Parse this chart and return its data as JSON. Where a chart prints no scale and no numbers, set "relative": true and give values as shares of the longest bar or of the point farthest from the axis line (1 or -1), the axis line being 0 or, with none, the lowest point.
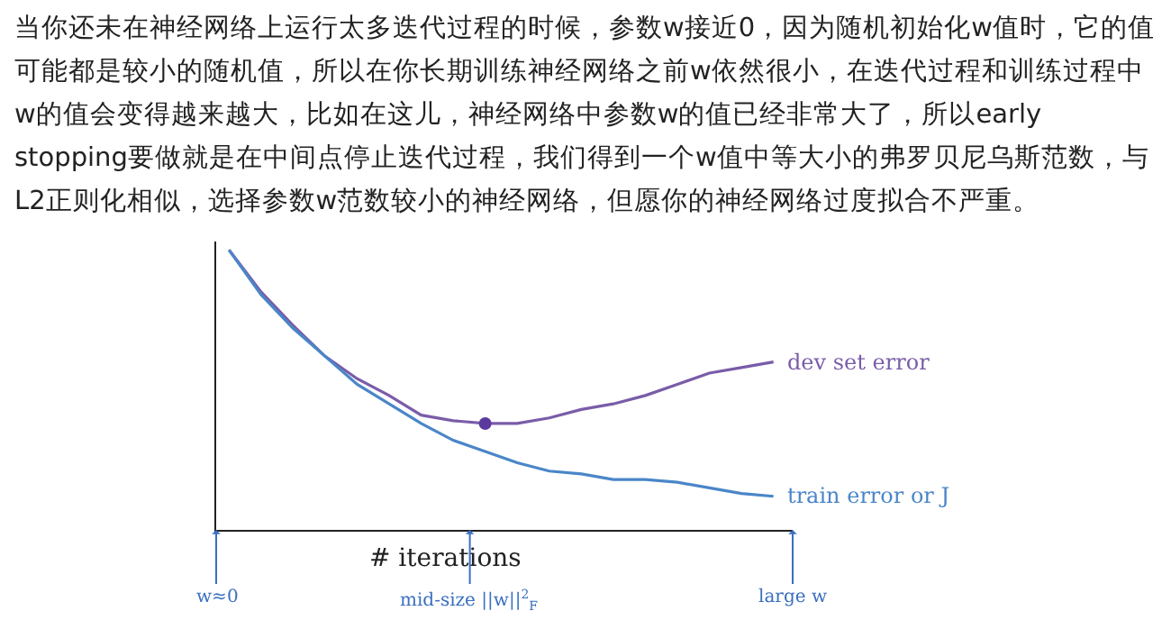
{
  "chart_data": {
    "type": "line",
    "title": "当你还未在神经网络上运行太多迭代过程的时候，参数w接近0，因为随机初始化w值时，它的值可能都是较小的随机值，所以在你长期训练神经网络之前w依然很小，在迭代过程和训练过程中w的值会变得越来越大，比如在这儿，神经网络中参数w的值已经非常大了，所以early stopping要做就是在中间点停止迭代过程，我们得到一个w值中等大小的弗罗贝尼乌斯范数，与L2正则化相似，选择参数w范数较小的神经网络，但愿你的神经网络过度拟合不严重。",
    "xlabel": "# iterations",
    "relative": true,
    "categories": [
      null,
      null,
      null,
      null,
      null,
      null,
      null,
      null,
      null,
      null,
      null,
      null,
      null,
      null,
      null,
      null,
      null,
      null
    ],
    "series": [
      {
        "name": "dev set error",
        "color": "#7a5ca8",
        "values": [
          1.0,
          0.85,
          0.73,
          0.62,
          0.54,
          0.48,
          0.41,
          0.39,
          0.38,
          0.38,
          0.4,
          0.43,
          0.45,
          0.48,
          0.52,
          0.56,
          0.58,
          0.6
        ]
      },
      {
        "name": "train error or J",
        "color": "#4a86c8",
        "values": [
          1.0,
          0.84,
          0.72,
          0.62,
          0.52,
          0.45,
          0.38,
          0.32,
          0.28,
          0.24,
          0.21,
          0.2,
          0.18,
          0.18,
          0.17,
          0.15,
          0.13,
          0.12
        ]
      }
    ],
    "annotations": [
      "w≈0",
      "mid-size ||w||$^{2}$$_{F}$",
      "large w"
    ],
    "legend": false
  }
}
